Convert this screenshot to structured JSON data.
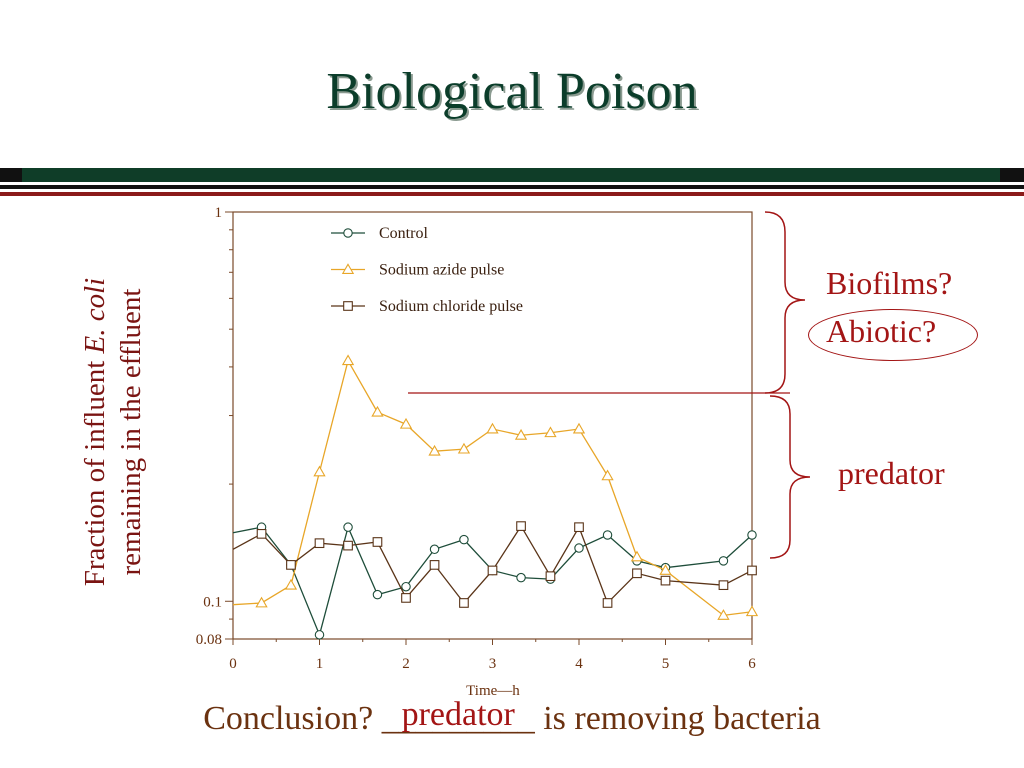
{
  "slide": {
    "title": "Biological Poison",
    "annotations": {
      "biofilms": "Biofilms?",
      "abiotic": "Abiotic?",
      "predator": "predator"
    },
    "conclusion": {
      "prefix": "Conclusion? ",
      "blank": "_________",
      "answer": "predator",
      "suffix": " is removing bacteria"
    },
    "colors": {
      "title": "#0b3d2a",
      "accent_red": "#a31515",
      "text_brown": "#6b3210",
      "rule_green": "#0f3d28",
      "rule_red": "#8b1a1a"
    }
  },
  "chart_data": {
    "type": "line",
    "xlabel": "Time—h",
    "ylabel_line1_prefix": "Fraction of influent ",
    "ylabel_line1_italic": "E. coli",
    "ylabel_line2": "remaining in the effluent",
    "xlim": [
      0,
      6
    ],
    "ylim": [
      0.08,
      1
    ],
    "yscale": "log",
    "x_ticks": [
      "0",
      "1",
      "2",
      "3",
      "4",
      "5",
      "6"
    ],
    "y_ticks": [
      "1",
      "0.1",
      "0.08"
    ],
    "legend_position": "top-left",
    "series": [
      {
        "name": "Control",
        "marker": "circle",
        "color": "#1e4d3a",
        "x": [
          0,
          0.33,
          0.67,
          1.0,
          1.33,
          1.67,
          2.0,
          2.33,
          2.67,
          3.0,
          3.33,
          3.67,
          4.0,
          4.33,
          4.67,
          5.0,
          5.67,
          6.0
        ],
        "y": [
          0.15,
          0.155,
          0.124,
          0.082,
          0.155,
          0.104,
          0.109,
          0.136,
          0.144,
          0.12,
          0.115,
          0.114,
          0.137,
          0.148,
          0.127,
          0.122,
          0.127,
          0.148
        ]
      },
      {
        "name": "Sodium azide pulse",
        "marker": "triangle",
        "color": "#e8a628",
        "x": [
          0,
          0.33,
          0.67,
          1.0,
          1.33,
          1.67,
          2.0,
          2.33,
          2.67,
          3.0,
          3.33,
          3.67,
          4.0,
          4.33,
          4.67,
          5.0,
          5.67,
          6.0
        ],
        "y": [
          0.098,
          0.099,
          0.11,
          0.215,
          0.415,
          0.306,
          0.285,
          0.243,
          0.246,
          0.277,
          0.267,
          0.271,
          0.277,
          0.21,
          0.13,
          0.12,
          0.092,
          0.094
        ]
      },
      {
        "name": "Sodium chloride pulse",
        "marker": "square",
        "color": "#5a3418",
        "x": [
          0,
          0.33,
          0.67,
          1.0,
          1.33,
          1.67,
          2.0,
          2.33,
          2.67,
          3.0,
          3.33,
          3.67,
          4.0,
          4.33,
          4.67,
          5.0,
          5.67,
          6.0
        ],
        "y": [
          0.136,
          0.149,
          0.124,
          0.141,
          0.139,
          0.142,
          0.102,
          0.124,
          0.099,
          0.12,
          0.156,
          0.116,
          0.155,
          0.099,
          0.118,
          0.113,
          0.11,
          0.12
        ]
      }
    ]
  }
}
